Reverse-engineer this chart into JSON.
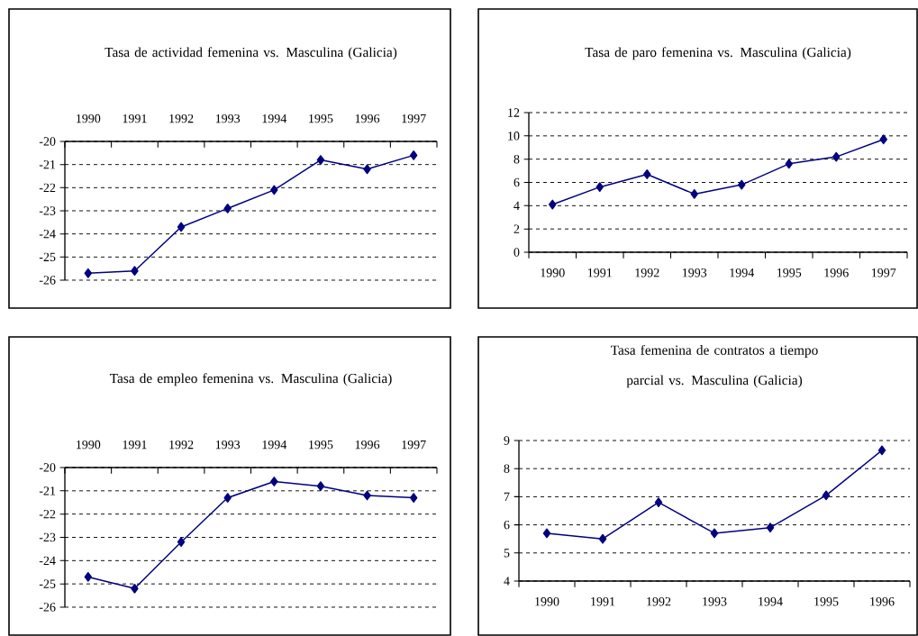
{
  "chart_data": [
    {
      "type": "line",
      "title": "Tasa de actividad femenina vs. Masculina (Galicia)",
      "categories": [
        "1990",
        "1991",
        "1992",
        "1993",
        "1994",
        "1995",
        "1996",
        "1997"
      ],
      "values": [
        -25.7,
        -25.6,
        -23.7,
        -22.9,
        -22.1,
        -20.8,
        -21.2,
        -20.6
      ],
      "color": "#000080",
      "ylim": [
        -26,
        -20
      ],
      "yticks": [
        -26,
        -25,
        -24,
        -23,
        -22,
        -21,
        -20
      ],
      "grid": "y",
      "marker": "diamond"
    },
    {
      "type": "line",
      "title": "Tasa de paro femenina vs. Masculina (Galicia)",
      "categories": [
        "1990",
        "1991",
        "1992",
        "1993",
        "1994",
        "1995",
        "1996",
        "1997"
      ],
      "values": [
        4.1,
        5.6,
        6.7,
        5.0,
        5.8,
        7.6,
        8.2,
        9.7
      ],
      "color": "#000080",
      "ylim": [
        0,
        12
      ],
      "yticks": [
        0,
        2,
        4,
        6,
        8,
        10,
        12
      ],
      "grid": "y",
      "marker": "diamond"
    },
    {
      "type": "line",
      "title": "Tasa de empleo femenina vs. Masculina (Galicia)",
      "categories": [
        "1990",
        "1991",
        "1992",
        "1993",
        "1994",
        "1995",
        "1996",
        "1997"
      ],
      "values": [
        -24.7,
        -25.2,
        -23.2,
        -21.3,
        -20.6,
        -20.8,
        -21.2,
        -21.3
      ],
      "color": "#000080",
      "ylim": [
        -26,
        -20
      ],
      "yticks": [
        -26,
        -25,
        -24,
        -23,
        -22,
        -21,
        -20
      ],
      "grid": "y",
      "marker": "diamond"
    },
    {
      "type": "line",
      "title": "Tasa femenina de contratos a tiempo parcial vs. Masculina (Galicia)",
      "categories": [
        "1990",
        "1991",
        "1992",
        "1993",
        "1994",
        "1995",
        "1996"
      ],
      "values": [
        5.7,
        5.5,
        6.8,
        5.7,
        5.9,
        7.05,
        8.65
      ],
      "color": "#000080",
      "ylim": [
        4,
        9
      ],
      "yticks": [
        4,
        5,
        6,
        7,
        8,
        9
      ],
      "grid": "y",
      "marker": "diamond"
    }
  ]
}
